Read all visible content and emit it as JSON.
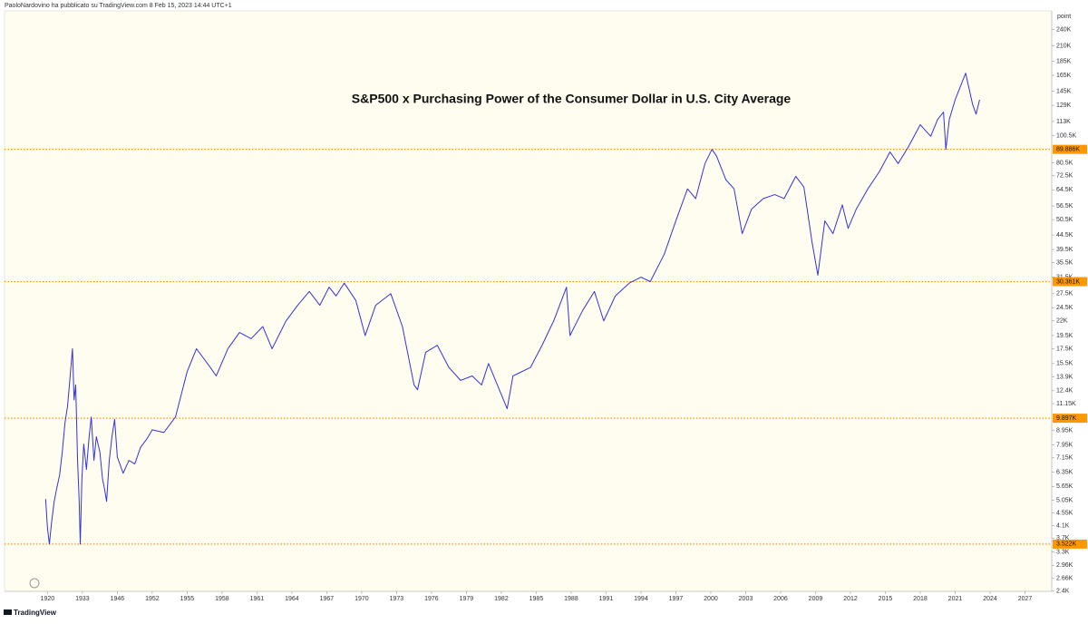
{
  "header": "PaoloNardovino ha pubblicato su TradingView.com 8 Feb 15, 2023 14:44 UTC+1",
  "footer": "TradingView",
  "chart_data": {
    "type": "line",
    "title": "S&P500 x Purchasing Power of the Consumer Dollar in U.S. City Average",
    "y_axis_label": "point",
    "log_scale": true,
    "grid": false,
    "color": "#3333dd",
    "hline_color": "#ff9800",
    "background": "#fffdf0",
    "xlim": [
      1904,
      2029.3
    ],
    "xticks": [
      1920,
      1933,
      1946,
      1952,
      1955,
      1958,
      1961,
      1964,
      1967,
      1970,
      1973,
      1976,
      1979,
      1982,
      1985,
      1988,
      1991,
      1994,
      1997,
      2000,
      2003,
      2006,
      2009,
      2012,
      2015,
      2018,
      2021,
      2024,
      2027
    ],
    "ylim": [
      2390,
      280000
    ],
    "yticks": [
      {
        "value": 240000,
        "label": "240K"
      },
      {
        "value": 210000,
        "label": "210K"
      },
      {
        "value": 185000,
        "label": "185K"
      },
      {
        "value": 165000,
        "label": "165K"
      },
      {
        "value": 145000,
        "label": "145K"
      },
      {
        "value": 129000,
        "label": "129K"
      },
      {
        "value": 113000,
        "label": "113K"
      },
      {
        "value": 100500,
        "label": "100.5K"
      },
      {
        "value": 80500,
        "label": "80.5K"
      },
      {
        "value": 72500,
        "label": "72.5K"
      },
      {
        "value": 64500,
        "label": "64.5K"
      },
      {
        "value": 56500,
        "label": "56.5K"
      },
      {
        "value": 50500,
        "label": "50.5K"
      },
      {
        "value": 44500,
        "label": "44.5K"
      },
      {
        "value": 39500,
        "label": "39.5K"
      },
      {
        "value": 35500,
        "label": "35.5K"
      },
      {
        "value": 31500,
        "label": "31.5K"
      },
      {
        "value": 27500,
        "label": "27.5K"
      },
      {
        "value": 24500,
        "label": "24.5K"
      },
      {
        "value": 22000,
        "label": "22K"
      },
      {
        "value": 19500,
        "label": "19.5K"
      },
      {
        "value": 17500,
        "label": "17.5K"
      },
      {
        "value": 15500,
        "label": "15.5K"
      },
      {
        "value": 13900,
        "label": "13.9K"
      },
      {
        "value": 12400,
        "label": "12.4K"
      },
      {
        "value": 11150,
        "label": "11.15K"
      },
      {
        "value": 8950,
        "label": "8.95K"
      },
      {
        "value": 7950,
        "label": "7.95K"
      },
      {
        "value": 7150,
        "label": "7.15K"
      },
      {
        "value": 6350,
        "label": "6.35K"
      },
      {
        "value": 5650,
        "label": "5.65K"
      },
      {
        "value": 5050,
        "label": "5.05K"
      },
      {
        "value": 4550,
        "label": "4.55K"
      },
      {
        "value": 4100,
        "label": "4.1K"
      },
      {
        "value": 3700,
        "label": "3.7K"
      },
      {
        "value": 3300,
        "label": "3.3K"
      },
      {
        "value": 2960,
        "label": "2.96K"
      },
      {
        "value": 2660,
        "label": "2.66K"
      },
      {
        "value": 2400,
        "label": "2.4K"
      }
    ],
    "hlines": [
      {
        "value": 89886,
        "label": "89.886K"
      },
      {
        "value": 30361,
        "label": "30.361K"
      },
      {
        "value": 9897,
        "label": "9.897K"
      },
      {
        "value": 3522,
        "label": "3.522K"
      }
    ],
    "x": [
      1919.3,
      1920.0,
      1920.7,
      1921.5,
      1922.5,
      1923.5,
      1924.5,
      1925.5,
      1926.5,
      1927.5,
      1928.3,
      1929.3,
      1929.9,
      1930.5,
      1931.2,
      1931.8,
      1932.2,
      1932.8,
      1933.5,
      1934.5,
      1935.5,
      1936.3,
      1937.3,
      1938.2,
      1939.5,
      1940.5,
      1941.3,
      1942.0,
      1943.0,
      1944.0,
      1945.0,
      1946.0,
      1947.0,
      1948.0,
      1949.0,
      1950.0,
      1951.0,
      1952.0,
      1953.0,
      1954.0,
      1955.0,
      1955.8,
      1957.0,
      1957.5,
      1958.5,
      1959.5,
      1960.5,
      1961.5,
      1962.3,
      1963.5,
      1964.5,
      1965.5,
      1966.4,
      1967.2,
      1967.8,
      1968.5,
      1969.5,
      1970.3,
      1971.2,
      1972.5,
      1973.5,
      1974.5,
      1974.8,
      1975.5,
      1976.5,
      1977.5,
      1978.5,
      1979.5,
      1980.3,
      1980.9,
      1981.5,
      1982.5,
      1983.0,
      1984.5,
      1985.5,
      1986.5,
      1987.6,
      1987.9,
      1989.0,
      1990.0,
      1990.8,
      1991.8,
      1993.0,
      1994.0,
      1994.8,
      1996.0,
      1997.0,
      1998.0,
      1998.7,
      1999.5,
      2000.1,
      2000.5,
      2001.3,
      2002.0,
      2002.7,
      2003.5,
      2004.5,
      2005.5,
      2006.3,
      2007.3,
      2008.0,
      2008.7,
      2009.2,
      2009.8,
      2010.5,
      2011.3,
      2011.8,
      2012.5,
      2013.5,
      2014.5,
      2015.4,
      2016.1,
      2017.0,
      2018.0,
      2018.9,
      2019.5,
      2020.0,
      2020.2,
      2020.5,
      2021.0,
      2021.9,
      2022.5,
      2022.8,
      2023.1
    ],
    "values": [
      5100,
      4000,
      3522,
      4200,
      5000,
      5600,
      6200,
      7500,
      9500,
      11000,
      13500,
      17500,
      11500,
      13000,
      7000,
      5000,
      3522,
      6000,
      8000,
      6500,
      8500,
      10000,
      7000,
      8500,
      7500,
      6000,
      5500,
      5000,
      7000,
      8500,
      9800,
      7200,
      6300,
      7000,
      6800,
      7800,
      8300,
      9000,
      8800,
      10000,
      14500,
      17500,
      15000,
      14000,
      17500,
      20000,
      19000,
      21000,
      17500,
      22000,
      25000,
      28000,
      25000,
      29000,
      27000,
      30000,
      26000,
      19500,
      25000,
      27500,
      21000,
      13000,
      12500,
      17000,
      18000,
      15000,
      13500,
      14000,
      13000,
      15500,
      13500,
      10700,
      14000,
      15000,
      18000,
      22000,
      29000,
      19500,
      24000,
      28000,
      22000,
      27000,
      30000,
      31500,
      30361,
      38000,
      50000,
      65000,
      60000,
      80000,
      89886,
      85000,
      70000,
      65000,
      45000,
      55000,
      60000,
      62000,
      60000,
      72000,
      66000,
      42000,
      32000,
      50000,
      45000,
      57000,
      47000,
      55000,
      65000,
      75000,
      88000,
      80000,
      92000,
      110000,
      100000,
      115000,
      122000,
      89886,
      115000,
      135000,
      168000,
      130000,
      120000,
      135000
    ]
  }
}
